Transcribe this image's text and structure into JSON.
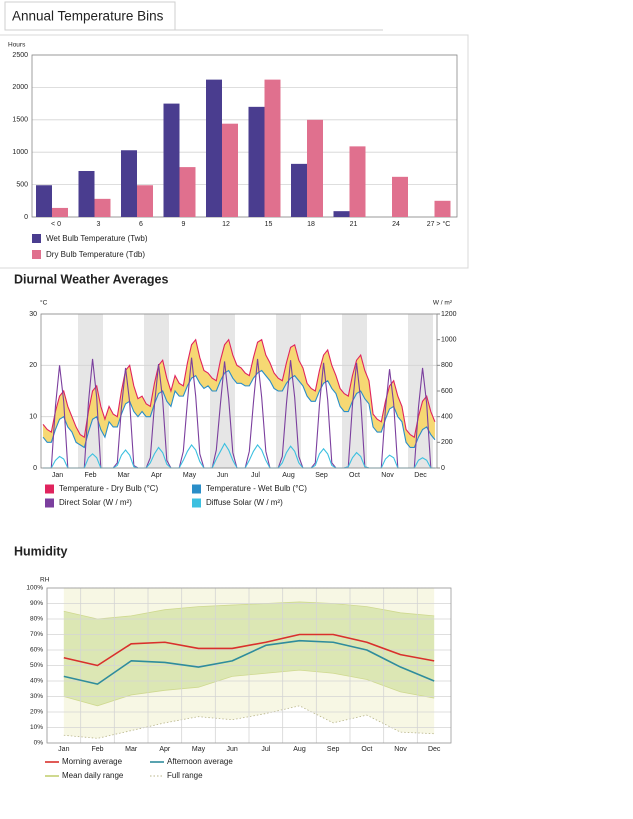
{
  "chart_data": [
    {
      "type": "bar",
      "title": "Annual Temperature Bins",
      "y_label": "Hours",
      "categories": [
        "< 0",
        "3",
        "6",
        "9",
        "12",
        "15",
        "18",
        "21",
        "24",
        "27 > °C"
      ],
      "series": [
        {
          "name": "Wet Bulb Temperature (Twb)",
          "color": "#4a3d8f",
          "values": [
            490,
            710,
            1030,
            1750,
            2120,
            1700,
            820,
            90,
            0,
            0
          ]
        },
        {
          "name": "Dry Bulb Temperature (Tdb)",
          "color": "#e0708e",
          "values": [
            140,
            280,
            490,
            770,
            1440,
            2120,
            1500,
            1090,
            620,
            250
          ]
        }
      ],
      "ylim": [
        0,
        2500
      ],
      "yticks": [
        0,
        500,
        1000,
        1500,
        2000,
        2500
      ],
      "grid": true
    },
    {
      "type": "line",
      "title": "Diurnal Weather Averages",
      "y_label": "°C",
      "y2_label": "W / m²",
      "categories": [
        "Jan",
        "Feb",
        "Mar",
        "Apr",
        "May",
        "Jun",
        "Jul",
        "Aug",
        "Sep",
        "Oct",
        "Nov",
        "Dec"
      ],
      "fill_between": {
        "series": [
          0,
          1
        ],
        "color": "#f6d873"
      },
      "series": [
        {
          "name": "Temperature - Dry Bulb (°C)",
          "color": "#e0245e",
          "values": [
            [
              8.5,
              7.5,
              7,
              11,
              14,
              15,
              12,
              10
            ],
            [
              8,
              6.5,
              6,
              11,
              15,
              16,
              12,
              9.5
            ],
            [
              12,
              10.5,
              10,
              15,
              19,
              20,
              16,
              13.5
            ],
            [
              14,
              12.5,
              12,
              16.5,
              20,
              21,
              17.5,
              15
            ],
            [
              18,
              16.5,
              16,
              20.5,
              24,
              25,
              21.5,
              19
            ],
            [
              18.5,
              17.5,
              17,
              21,
              24,
              25,
              22,
              20
            ],
            [
              19.5,
              18.5,
              18,
              21.5,
              24.5,
              25,
              22,
              20.5
            ],
            [
              18.5,
              17.5,
              17,
              20.5,
              23.5,
              24,
              21,
              19.5
            ],
            [
              16.5,
              15.5,
              15,
              19,
              22,
              23,
              20,
              18
            ],
            [
              15.5,
              14.5,
              14,
              18,
              21,
              22,
              19,
              17
            ],
            [
              10.5,
              9.5,
              9,
              13,
              16,
              17,
              14,
              12
            ],
            [
              7.5,
              6.5,
              6,
              10,
              13,
              14,
              11,
              9
            ]
          ]
        },
        {
          "name": "Temperature - Wet Bulb (°C)",
          "color": "#2a8ec8",
          "values": [
            [
              6,
              5,
              5,
              7.5,
              9.5,
              10,
              8,
              7
            ],
            [
              5,
              4.5,
              4,
              7,
              9.5,
              10,
              7.5,
              6
            ],
            [
              9,
              8,
              8,
              10.5,
              12.5,
              13,
              11,
              10
            ],
            [
              11,
              10,
              10,
              12.5,
              14.5,
              15,
              13,
              12
            ],
            [
              15,
              14,
              14,
              16,
              17.5,
              18,
              16.5,
              15.5
            ],
            [
              16,
              15,
              15,
              17,
              18.5,
              19,
              17.5,
              16.5
            ],
            [
              16.5,
              16,
              16,
              17.5,
              18.5,
              19,
              18,
              17
            ],
            [
              15.5,
              15,
              15,
              16.5,
              17.5,
              18,
              17,
              16
            ],
            [
              14,
              13,
              13,
              15,
              16.5,
              17,
              15.5,
              14.5
            ],
            [
              12,
              11,
              11,
              13,
              14.5,
              15,
              13.5,
              12.5
            ],
            [
              8,
              7,
              7,
              9.5,
              11.5,
              12,
              10,
              9
            ],
            [
              5,
              4,
              4,
              6,
              7.5,
              8,
              6.5,
              5.5
            ]
          ]
        },
        {
          "name": "Direct Solar (W / m²)",
          "color": "#7b3f9e",
          "axis": "y2",
          "values": [
            [
              0,
              0,
              0,
              480,
              800,
              520,
              0,
              0
            ],
            [
              0,
              0,
              0,
              510,
              850,
              550,
              0,
              0
            ],
            [
              0,
              0,
              40,
              470,
              780,
              510,
              20,
              0
            ],
            [
              0,
              0,
              80,
              490,
              810,
              530,
              60,
              0
            ],
            [
              0,
              0,
              130,
              520,
              860,
              560,
              110,
              0
            ],
            [
              0,
              0,
              140,
              500,
              830,
              540,
              120,
              0
            ],
            [
              0,
              0,
              130,
              510,
              850,
              550,
              130,
              0
            ],
            [
              0,
              0,
              90,
              500,
              840,
              550,
              90,
              0
            ],
            [
              0,
              0,
              40,
              490,
              820,
              530,
              40,
              0
            ],
            [
              0,
              0,
              10,
              490,
              820,
              530,
              10,
              0
            ],
            [
              0,
              0,
              0,
              460,
              770,
              500,
              0,
              0
            ],
            [
              0,
              0,
              0,
              470,
              780,
              500,
              0,
              0
            ]
          ]
        },
        {
          "name": "Diffuse Solar (W / m²)",
          "color": "#3cc0e0",
          "axis": "y2",
          "values": [
            [
              0,
              0,
              0,
              60,
              90,
              70,
              0,
              0
            ],
            [
              0,
              0,
              0,
              80,
              110,
              80,
              0,
              0
            ],
            [
              0,
              0,
              20,
              100,
              140,
              100,
              10,
              0
            ],
            [
              0,
              0,
              40,
              110,
              160,
              120,
              30,
              0
            ],
            [
              0,
              0,
              60,
              130,
              180,
              140,
              50,
              0
            ],
            [
              0,
              0,
              70,
              130,
              190,
              140,
              60,
              0
            ],
            [
              0,
              0,
              60,
              130,
              180,
              140,
              60,
              0
            ],
            [
              0,
              0,
              40,
              120,
              170,
              130,
              40,
              0
            ],
            [
              0,
              0,
              20,
              110,
              150,
              110,
              20,
              0
            ],
            [
              0,
              0,
              10,
              80,
              120,
              90,
              10,
              0
            ],
            [
              0,
              0,
              0,
              70,
              100,
              80,
              0,
              0
            ],
            [
              0,
              0,
              0,
              60,
              80,
              60,
              0,
              0
            ]
          ]
        }
      ],
      "ylim": [
        0,
        30
      ],
      "yticks": [
        0,
        10,
        20,
        30
      ],
      "y2lim": [
        0,
        1200
      ],
      "y2ticks": [
        0,
        200,
        400,
        600,
        800,
        1000,
        1200
      ],
      "grid": true
    },
    {
      "type": "line",
      "title": "Humidity",
      "y_label": "RH",
      "categories": [
        "Jan",
        "Feb",
        "Mar",
        "Apr",
        "May",
        "Jun",
        "Jul",
        "Aug",
        "Sep",
        "Oct",
        "Nov",
        "Dec"
      ],
      "ranges": [
        {
          "name": "Full range",
          "color": "#f7f7e4",
          "line_color": "#b8b48a",
          "low": [
            5,
            3,
            8,
            13,
            17,
            15,
            19,
            24,
            13,
            18,
            7,
            6
          ],
          "high": [
            100,
            100,
            100,
            100,
            100,
            100,
            100,
            100,
            100,
            100,
            100,
            100
          ]
        },
        {
          "name": "Mean daily range",
          "color": "#dce7b4",
          "line_color": "#cfd98f",
          "low": [
            30,
            24,
            31,
            34,
            36,
            43,
            45,
            47,
            45,
            41,
            33,
            29
          ],
          "high": [
            85,
            80,
            82,
            86,
            88,
            89,
            90,
            91,
            90,
            88,
            84,
            82
          ]
        }
      ],
      "series": [
        {
          "name": "Morning average",
          "color": "#d9302c",
          "values": [
            55,
            50,
            64,
            65,
            61,
            61,
            65,
            70,
            70,
            65,
            57,
            53
          ]
        },
        {
          "name": "Afternoon average",
          "color": "#2f8c9c",
          "values": [
            43,
            38,
            53,
            52,
            49,
            53,
            63,
            66,
            65,
            60,
            49,
            40
          ]
        }
      ],
      "ylim": [
        0,
        100
      ],
      "yticks": [
        {
          "value": 0,
          "label": "0%"
        },
        {
          "value": 10,
          "label": "10%"
        },
        {
          "value": 20,
          "label": "20%"
        },
        {
          "value": 30,
          "label": "30%"
        },
        {
          "value": 40,
          "label": "40%"
        },
        {
          "value": 50,
          "label": "50%"
        },
        {
          "value": 60,
          "label": "60%"
        },
        {
          "value": 70,
          "label": "70%"
        },
        {
          "value": 80,
          "label": "80%"
        },
        {
          "value": 90,
          "label": "90%"
        },
        {
          "value": 100,
          "label": "100%"
        }
      ],
      "grid": true
    }
  ]
}
